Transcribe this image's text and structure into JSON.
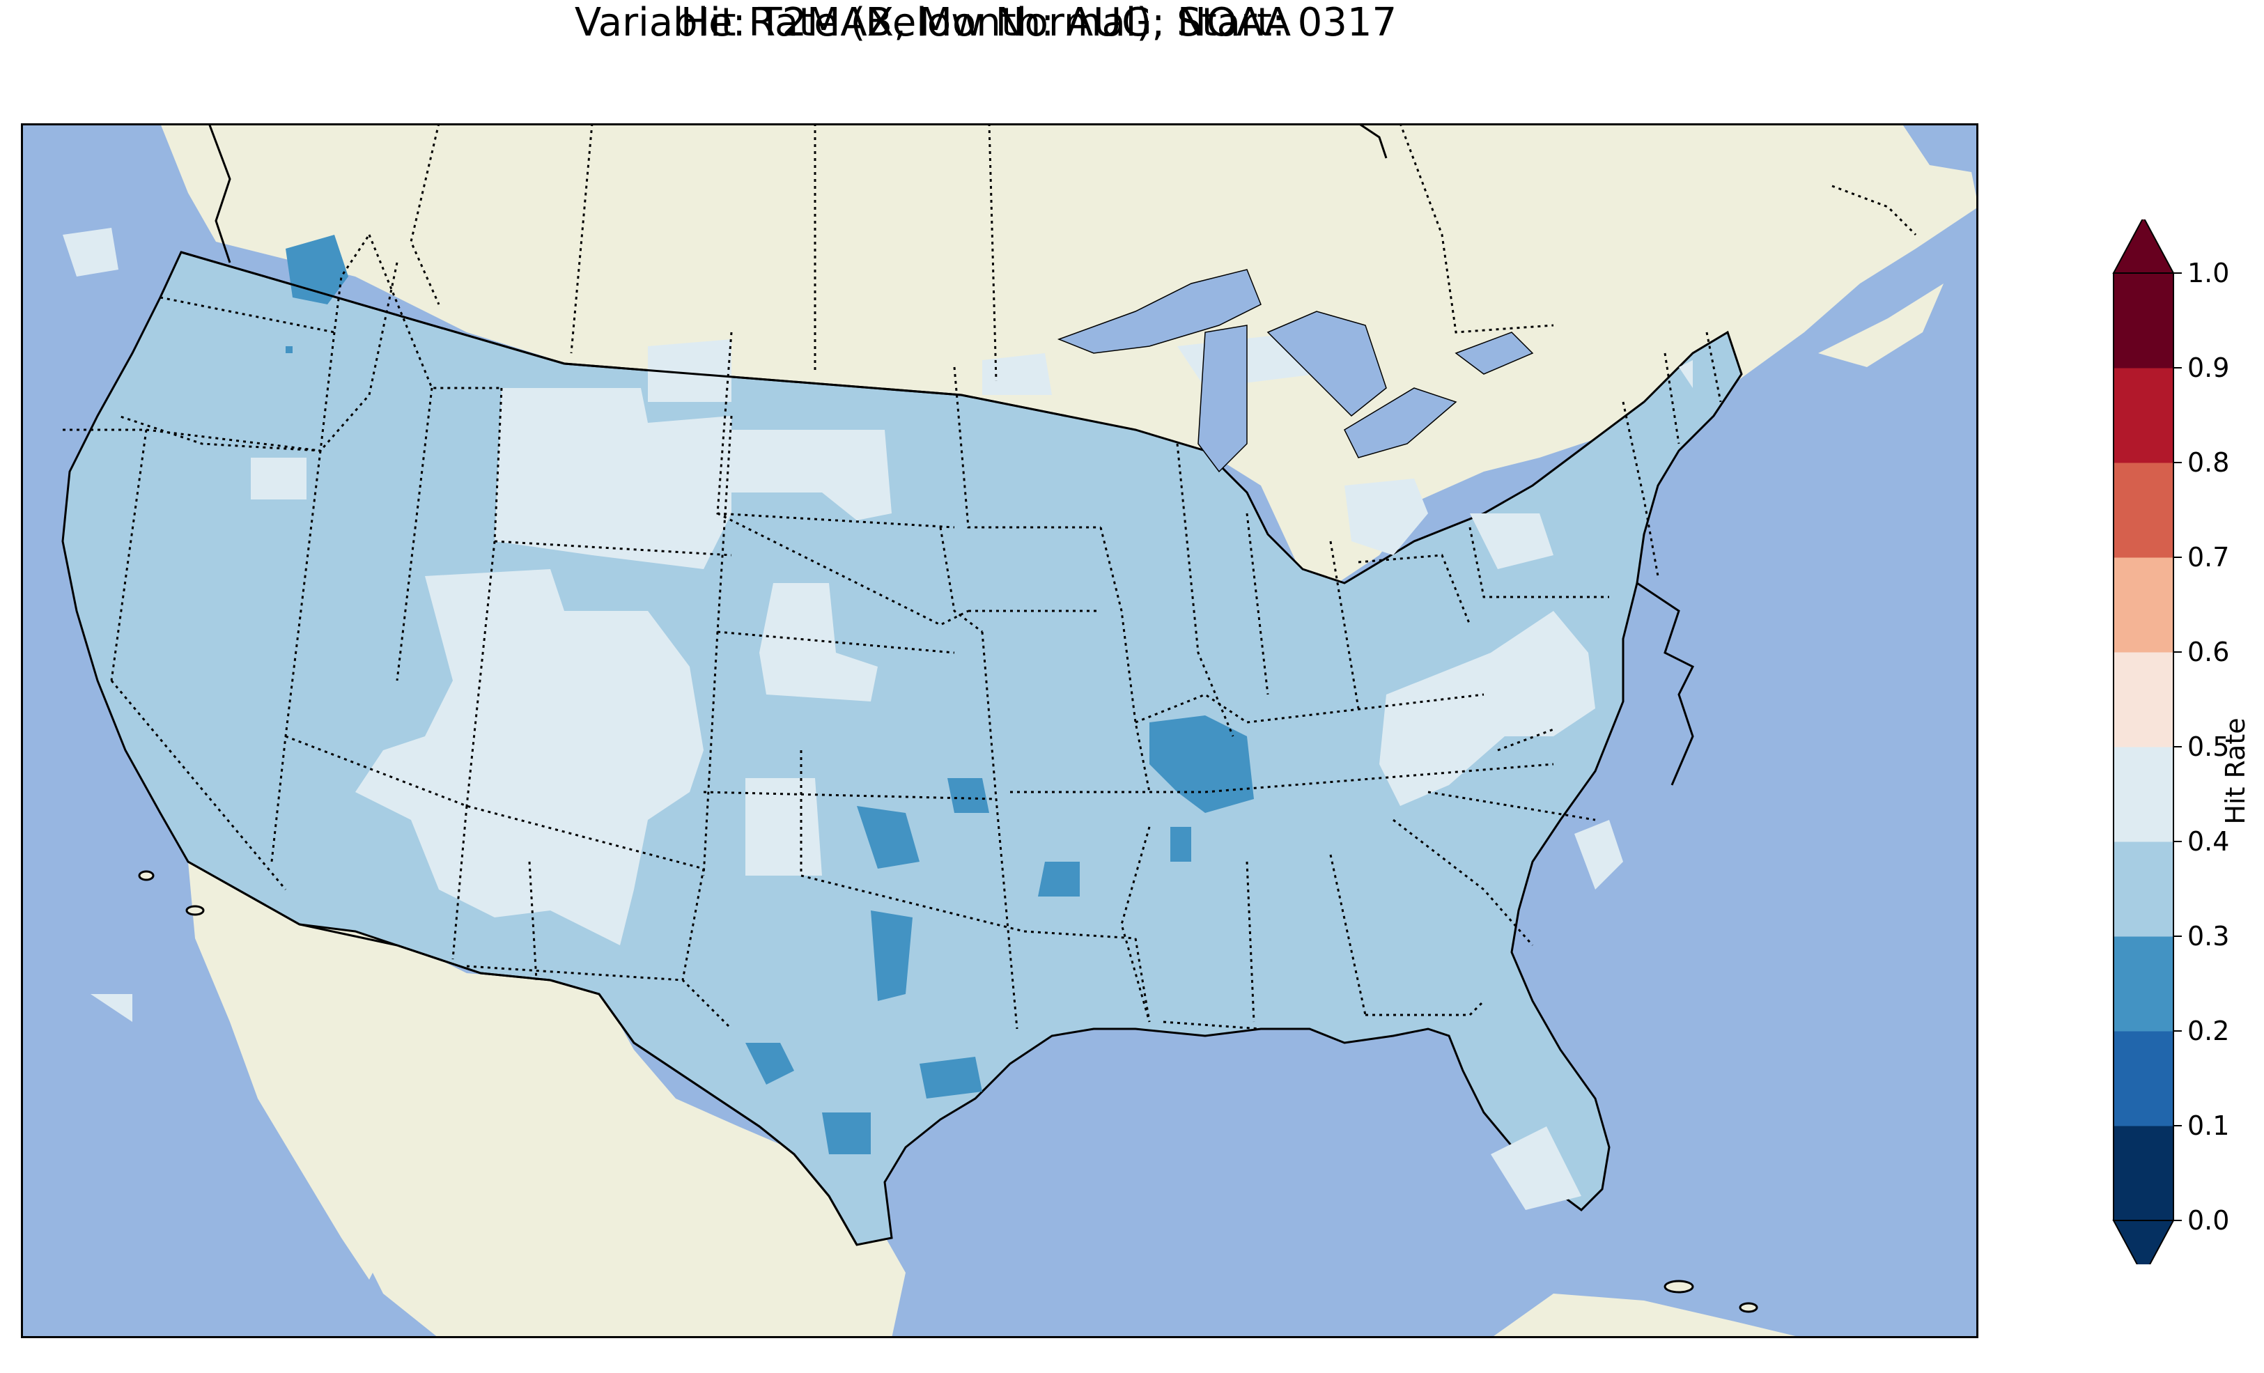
{
  "title_line1": "Hit Rate (Below Normal): NOAA",
  "title_line2": "Variable: T2MAX, Month: AUG, Start: 0317",
  "colors": {
    "ocean": "#97b6e1",
    "land": "#efefdc",
    "lakes": "#97b6e1",
    "coast": "#000000"
  },
  "colorbar": {
    "label": "Hit Rate",
    "ticks": [
      "0.0",
      "0.1",
      "0.2",
      "0.3",
      "0.4",
      "0.5",
      "0.6",
      "0.7",
      "0.8",
      "0.9",
      "1.0"
    ],
    "bins": [
      {
        "min": 0.0,
        "max": 0.1,
        "color": "#053061"
      },
      {
        "min": 0.1,
        "max": 0.2,
        "color": "#2166ac"
      },
      {
        "min": 0.2,
        "max": 0.3,
        "color": "#4393c3"
      },
      {
        "min": 0.3,
        "max": 0.4,
        "color": "#a7cde3"
      },
      {
        "min": 0.4,
        "max": 0.5,
        "color": "#deebf2"
      },
      {
        "min": 0.5,
        "max": 0.6,
        "color": "#f8e4da"
      },
      {
        "min": 0.6,
        "max": 0.7,
        "color": "#f4b495"
      },
      {
        "min": 0.7,
        "max": 0.8,
        "color": "#d6604d"
      },
      {
        "min": 0.8,
        "max": 0.9,
        "color": "#b2182b"
      },
      {
        "min": 0.9,
        "max": 1.0,
        "color": "#67001f"
      }
    ],
    "extend_low_color": "#053061",
    "extend_high_color": "#67001f"
  }
}
